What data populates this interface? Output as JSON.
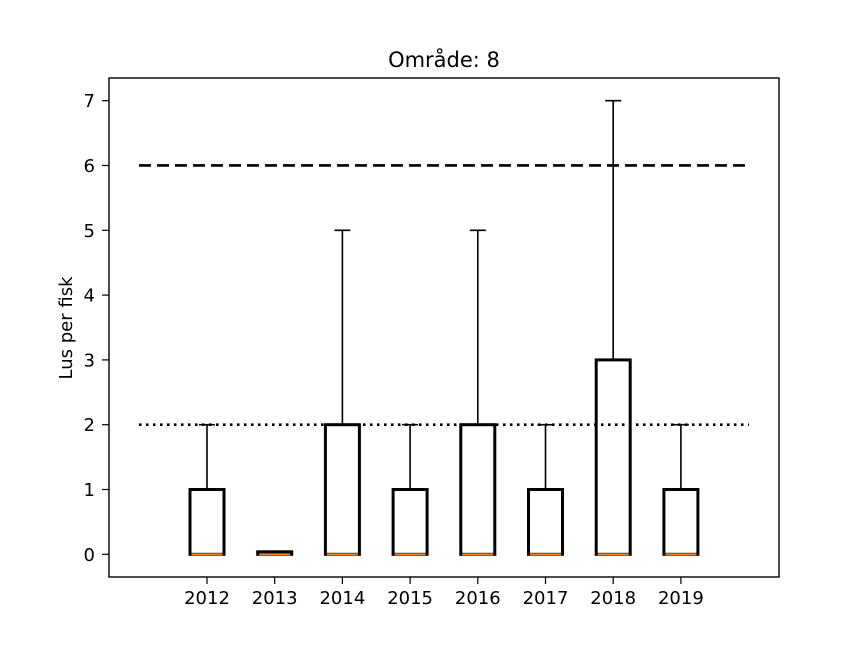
{
  "chart_data": {
    "type": "box",
    "title": "Område: 8",
    "xlabel": "",
    "ylabel": "Lus per fisk",
    "ylim": [
      -0.35,
      7.35
    ],
    "yticks": [
      0,
      1,
      2,
      3,
      4,
      5,
      6,
      7
    ],
    "categories": [
      "2012",
      "2013",
      "2014",
      "2015",
      "2016",
      "2017",
      "2018",
      "2019"
    ],
    "boxes": [
      {
        "category": "2012",
        "whisker_low": 0,
        "q1": 0,
        "median": 0,
        "q3": 1,
        "whisker_high": 2
      },
      {
        "category": "2013",
        "whisker_low": 0,
        "q1": 0,
        "median": 0,
        "q3": 0,
        "whisker_high": 0
      },
      {
        "category": "2014",
        "whisker_low": 0,
        "q1": 0,
        "median": 0,
        "q3": 2,
        "whisker_high": 5
      },
      {
        "category": "2015",
        "whisker_low": 0,
        "q1": 0,
        "median": 0,
        "q3": 1,
        "whisker_high": 2
      },
      {
        "category": "2016",
        "whisker_low": 0,
        "q1": 0,
        "median": 0,
        "q3": 2,
        "whisker_high": 5
      },
      {
        "category": "2017",
        "whisker_low": 0,
        "q1": 0,
        "median": 0,
        "q3": 1,
        "whisker_high": 2
      },
      {
        "category": "2018",
        "whisker_low": 0,
        "q1": 0,
        "median": 0,
        "q3": 3,
        "whisker_high": 7
      },
      {
        "category": "2019",
        "whisker_low": 0,
        "q1": 0,
        "median": 0,
        "q3": 1,
        "whisker_high": 2
      }
    ],
    "reference_lines": [
      {
        "y": 6,
        "style": "dashed"
      },
      {
        "y": 2,
        "style": "dotted"
      }
    ],
    "grid": false,
    "colors": {
      "box": "#000000",
      "median": "#ff7f0e",
      "reference": "#000000"
    }
  }
}
